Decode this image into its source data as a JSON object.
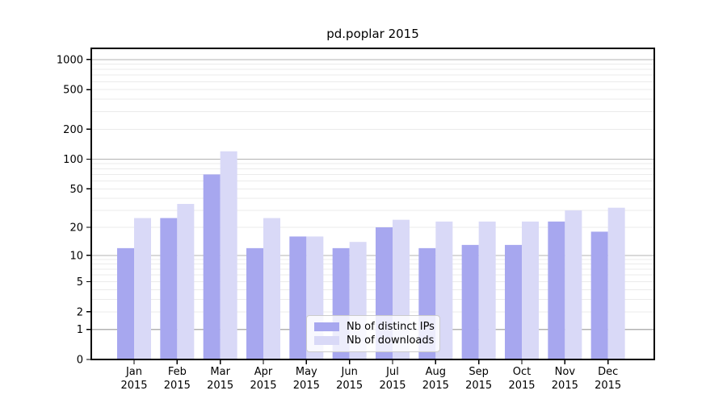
{
  "figure": {
    "background": "#ffffff"
  },
  "chart_data": {
    "type": "bar",
    "title": "pd.poplar 2015",
    "xlabel": "",
    "ylabel": "",
    "year": "2015",
    "categories": [
      "Jan",
      "Feb",
      "Mar",
      "Apr",
      "May",
      "Jun",
      "Jul",
      "Aug",
      "Sep",
      "Oct",
      "Nov",
      "Dec"
    ],
    "series": [
      {
        "name": "Nb of distinct IPs",
        "color": "#a7a7ef",
        "values": [
          12,
          25,
          70,
          12,
          16,
          12,
          20,
          12,
          13,
          13,
          23,
          18
        ]
      },
      {
        "name": "Nb of downloads",
        "color": "#d9d9f7",
        "values": [
          25,
          35,
          120,
          25,
          16,
          14,
          24,
          23,
          23,
          23,
          30,
          32
        ]
      }
    ],
    "yscale": "log1p",
    "ylim": [
      0,
      1300
    ],
    "yticks": [
      0,
      1,
      2,
      5,
      10,
      20,
      50,
      100,
      200,
      500,
      1000
    ],
    "grid": true,
    "legend_position": "lower-center",
    "legend_labels": [
      "Nb of distinct IPs",
      "Nb of downloads"
    ]
  },
  "colors": {
    "bar_dark": "#a7a7ef",
    "bar_light": "#d9d9f7",
    "grid_major": "#b3b3b3",
    "grid_minor": "#ebebeb",
    "spine": "#000000",
    "text": "#000000"
  }
}
